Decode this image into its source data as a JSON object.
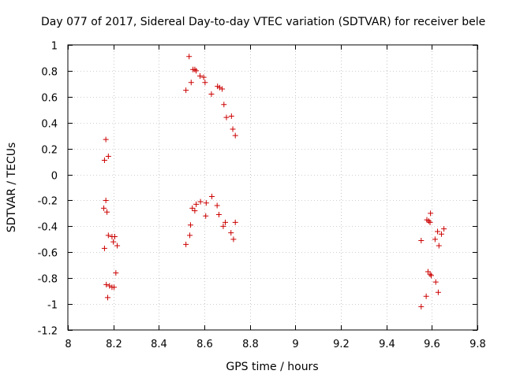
{
  "chart_data": {
    "type": "scatter",
    "title": "Day 077 of 2017, Sidereal Day-to-day VTEC variation (SDTVAR) for receiver bele",
    "xlabel": "GPS time / hours",
    "ylabel": "SDTVAR / TECUs",
    "xlim": [
      8,
      9.8
    ],
    "ylim": [
      -1.2,
      1
    ],
    "grid": true,
    "marker": "+",
    "marker_color": "#cc0000",
    "x_ticks": [
      {
        "v": 8,
        "label": "8"
      },
      {
        "v": 8.2,
        "label": "8.2"
      },
      {
        "v": 8.4,
        "label": "8.4"
      },
      {
        "v": 8.6,
        "label": "8.6"
      },
      {
        "v": 8.8,
        "label": "8.8"
      },
      {
        "v": 9,
        "label": "9"
      },
      {
        "v": 9.2,
        "label": "9.2"
      },
      {
        "v": 9.4,
        "label": "9.4"
      },
      {
        "v": 9.6,
        "label": "9.6"
      },
      {
        "v": 9.8,
        "label": "9.8"
      }
    ],
    "y_ticks": [
      {
        "v": 1,
        "label": "1"
      },
      {
        "v": 0.8,
        "label": "0.8"
      },
      {
        "v": 0.6,
        "label": "0.6"
      },
      {
        "v": 0.4,
        "label": "0.4"
      },
      {
        "v": 0.2,
        "label": "0.2"
      },
      {
        "v": 0,
        "label": "0"
      },
      {
        "v": -0.2,
        "label": "-0.2"
      },
      {
        "v": -0.4,
        "label": "-0.4"
      },
      {
        "v": -0.6,
        "label": "-0.6"
      },
      {
        "v": -0.8,
        "label": "-0.8"
      },
      {
        "v": -1,
        "label": "-1"
      },
      {
        "v": -1.2,
        "label": "-1.2"
      }
    ],
    "points": [
      [
        8.167,
        0.27
      ],
      [
        8.178,
        0.14
      ],
      [
        8.161,
        0.11
      ],
      [
        8.167,
        -0.2
      ],
      [
        8.158,
        -0.26
      ],
      [
        8.172,
        -0.29
      ],
      [
        8.178,
        -0.47
      ],
      [
        8.194,
        -0.48
      ],
      [
        8.206,
        -0.48
      ],
      [
        8.2,
        -0.52
      ],
      [
        8.217,
        -0.55
      ],
      [
        8.161,
        -0.57
      ],
      [
        8.211,
        -0.76
      ],
      [
        8.169,
        -0.85
      ],
      [
        8.183,
        -0.86
      ],
      [
        8.194,
        -0.87
      ],
      [
        8.203,
        -0.87
      ],
      [
        8.175,
        -0.95
      ],
      [
        8.533,
        0.91
      ],
      [
        8.55,
        0.81
      ],
      [
        8.558,
        0.81
      ],
      [
        8.564,
        0.8
      ],
      [
        8.581,
        0.76
      ],
      [
        8.597,
        0.75
      ],
      [
        8.603,
        0.71
      ],
      [
        8.542,
        0.71
      ],
      [
        8.658,
        0.68
      ],
      [
        8.667,
        0.67
      ],
      [
        8.678,
        0.66
      ],
      [
        8.519,
        0.65
      ],
      [
        8.631,
        0.62
      ],
      [
        8.686,
        0.54
      ],
      [
        8.697,
        0.44
      ],
      [
        8.719,
        0.45
      ],
      [
        8.725,
        0.35
      ],
      [
        8.736,
        0.3
      ],
      [
        8.633,
        -0.17
      ],
      [
        8.583,
        -0.21
      ],
      [
        8.608,
        -0.22
      ],
      [
        8.564,
        -0.23
      ],
      [
        8.656,
        -0.24
      ],
      [
        8.547,
        -0.26
      ],
      [
        8.558,
        -0.28
      ],
      [
        8.664,
        -0.31
      ],
      [
        8.606,
        -0.32
      ],
      [
        8.736,
        -0.37
      ],
      [
        8.692,
        -0.37
      ],
      [
        8.539,
        -0.39
      ],
      [
        8.683,
        -0.4
      ],
      [
        8.717,
        -0.45
      ],
      [
        8.536,
        -0.47
      ],
      [
        8.728,
        -0.5
      ],
      [
        8.519,
        -0.54
      ],
      [
        9.578,
        -0.35
      ],
      [
        9.586,
        -0.36
      ],
      [
        9.592,
        -0.37
      ],
      [
        9.594,
        -0.3
      ],
      [
        9.653,
        -0.42
      ],
      [
        9.625,
        -0.44
      ],
      [
        9.642,
        -0.46
      ],
      [
        9.614,
        -0.5
      ],
      [
        9.553,
        -0.51
      ],
      [
        9.631,
        -0.55
      ],
      [
        9.583,
        -0.75
      ],
      [
        9.592,
        -0.77
      ],
      [
        9.597,
        -0.78
      ],
      [
        9.617,
        -0.83
      ],
      [
        9.628,
        -0.91
      ],
      [
        9.575,
        -0.94
      ],
      [
        9.553,
        -1.02
      ]
    ]
  }
}
